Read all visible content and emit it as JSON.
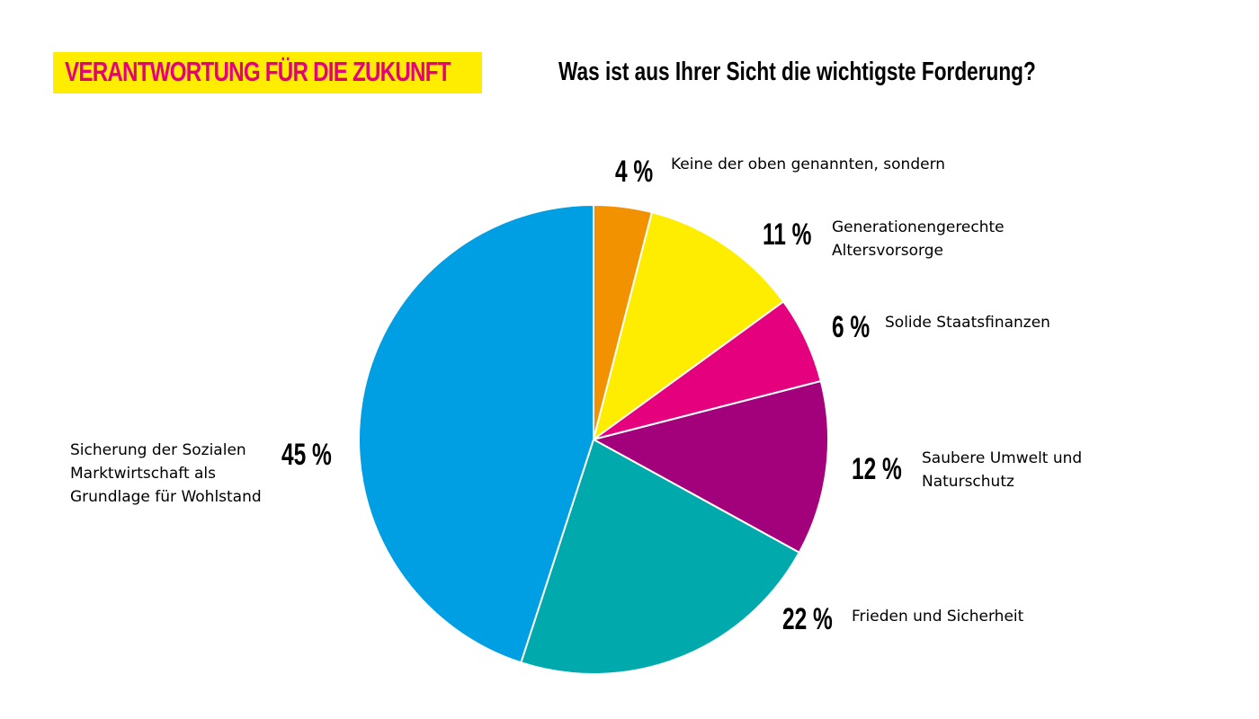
{
  "header": {
    "badge_text": "VERANTWORTUNG FÜR DIE ZUKUNFT",
    "question": "Was ist aus Ihrer Sicht die wichtigste Forderung?"
  },
  "colors": {
    "badge_background": "#FFED00",
    "badge_text": "#E5007D"
  },
  "chart_data": {
    "type": "pie",
    "title": "Was ist aus Ihrer Sicht die wichtigste Forderung?",
    "slices": [
      {
        "label_lines": [
          "Keine der oben genannten, sondern"
        ],
        "value": 4,
        "value_label": "4 %",
        "color": "#F39200"
      },
      {
        "label_lines": [
          "Generationengerechte",
          "Altersvorsorge"
        ],
        "value": 11,
        "value_label": "11 %",
        "color": "#FFED00"
      },
      {
        "label_lines": [
          "Solide Staatsfinanzen"
        ],
        "value": 6,
        "value_label": "6 %",
        "color": "#E5007D"
      },
      {
        "label_lines": [
          "Saubere Umwelt und",
          "Naturschutz"
        ],
        "value": 12,
        "value_label": "12 %",
        "color": "#A3007C"
      },
      {
        "label_lines": [
          "Frieden und Sicherheit"
        ],
        "value": 22,
        "value_label": "22 %",
        "color": "#00A9AC"
      },
      {
        "label_lines": [
          "Sicherung der Sozialen",
          "Marktwirtschaft als",
          "Grundlage für Wohlstand"
        ],
        "value": 45,
        "value_label": "45 %",
        "color": "#009FE3"
      }
    ],
    "start": "top (12 o'clock)",
    "direction": "clockwise",
    "legend": "none"
  }
}
